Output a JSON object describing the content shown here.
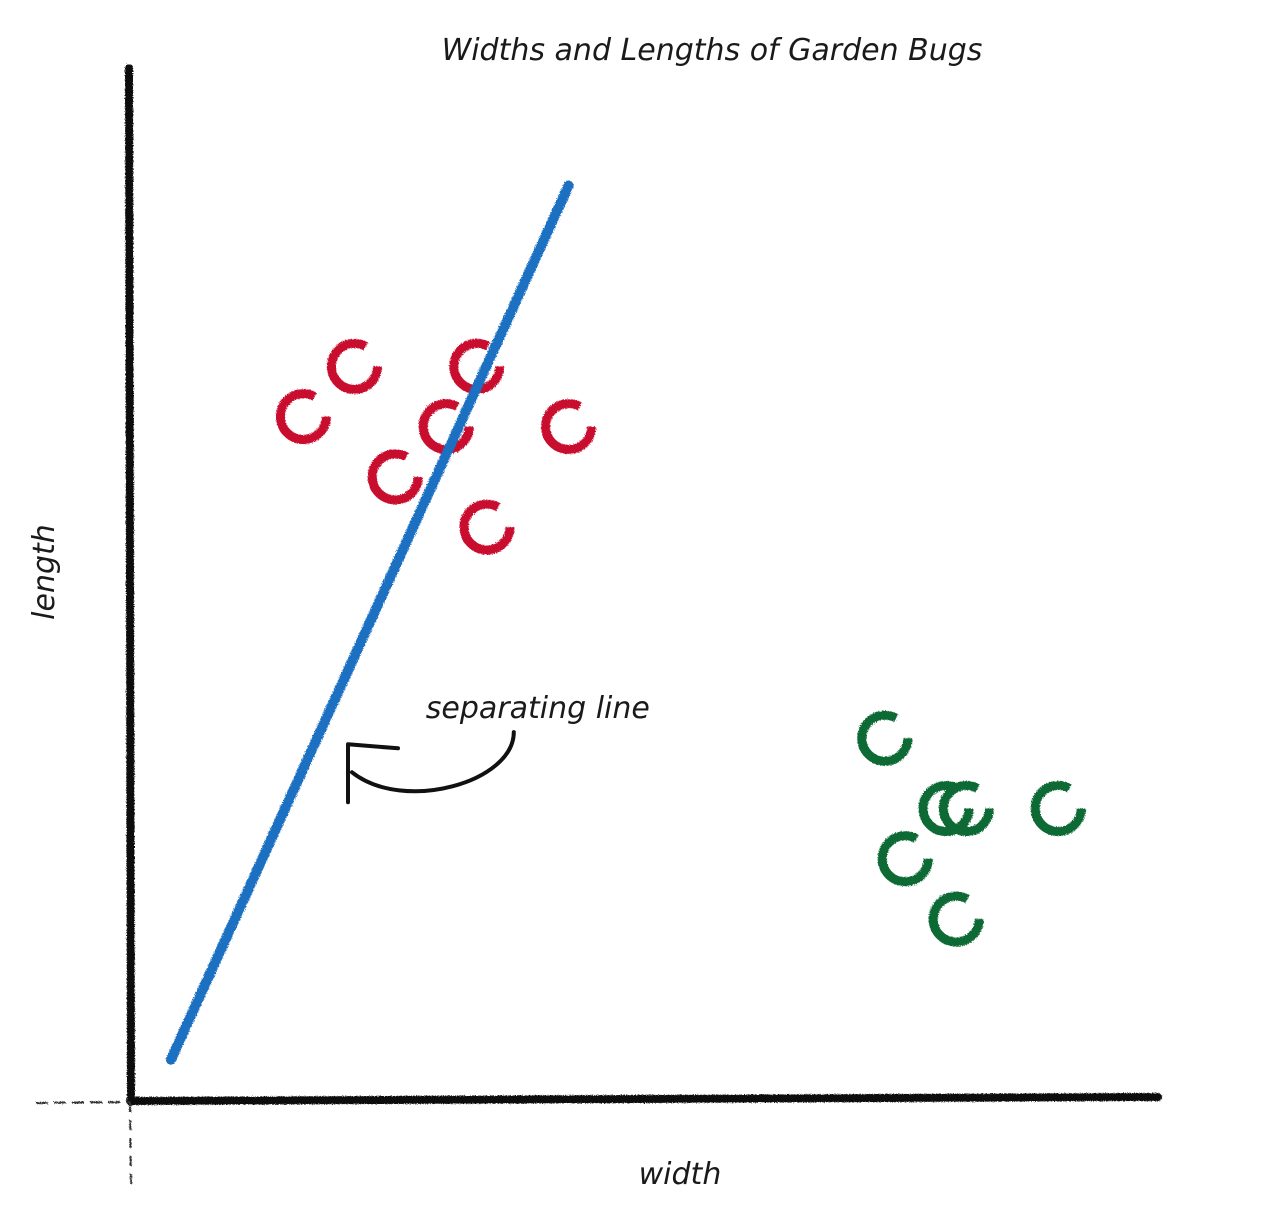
{
  "chart_data": {
    "type": "scatter",
    "title": "Widths and Lengths of Garden Bugs",
    "xlabel": "width",
    "ylabel": "length",
    "xlim": [
      0,
      10
    ],
    "ylim": [
      0,
      10
    ],
    "grid": false,
    "series": [
      {
        "color": "#c8102e",
        "points": [
          {
            "x": 1.7,
            "y": 6.8
          },
          {
            "x": 2.2,
            "y": 7.3
          },
          {
            "x": 2.6,
            "y": 6.2
          },
          {
            "x": 3.1,
            "y": 6.7
          },
          {
            "x": 3.4,
            "y": 7.3
          },
          {
            "x": 3.5,
            "y": 5.7
          },
          {
            "x": 4.3,
            "y": 6.7
          }
        ]
      },
      {
        "color": "#0b6b34",
        "points": [
          {
            "x": 7.4,
            "y": 3.6
          },
          {
            "x": 7.6,
            "y": 2.4
          },
          {
            "x": 8.0,
            "y": 2.9
          },
          {
            "x": 8.1,
            "y": 1.8
          },
          {
            "x": 8.2,
            "y": 2.9
          },
          {
            "x": 9.1,
            "y": 2.9
          }
        ]
      }
    ],
    "lines": [
      {
        "color": "#1a6fc2",
        "from": {
          "x": 0.4,
          "y": 0.4
        },
        "to": {
          "x": 4.3,
          "y": 9.1
        }
      }
    ],
    "annotations": [
      {
        "text": "separating line",
        "x": 2.9,
        "y": 3.8,
        "arrow_to": {
          "x": 2.0,
          "y": 3.4
        }
      }
    ]
  },
  "colors": {
    "axis": "#111111",
    "background": "#ffffff"
  }
}
